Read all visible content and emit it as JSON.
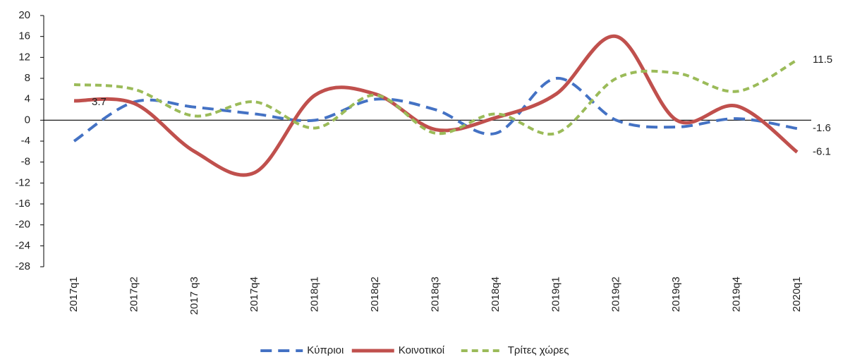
{
  "chart_data": {
    "type": "line",
    "categories": [
      "2017q1",
      "2017q2",
      "2017 q3",
      "2017q4",
      "2018q1",
      "2018q2",
      "2018q3",
      "2018q4",
      "2019q1",
      "2019q2",
      "2019q3",
      "2019q4",
      "2020q1"
    ],
    "series": [
      {
        "name": "Κύπριοι",
        "color": "#4472c4",
        "dash": "dashed",
        "values": [
          -4,
          3.5,
          2.5,
          1.2,
          0,
          4,
          2,
          -2.5,
          8,
          0,
          -1.3,
          0.3,
          -1.6
        ],
        "value_labels": [
          null,
          null,
          null,
          null,
          null,
          null,
          null,
          null,
          null,
          null,
          null,
          null,
          "-1.6"
        ]
      },
      {
        "name": "Κοινοτικοί",
        "color": "#c0504d",
        "dash": "solid",
        "values": [
          3.7,
          3.2,
          -6,
          -10,
          4.8,
          5,
          -1.8,
          0.5,
          5,
          16,
          0,
          2.7,
          -6.1
        ],
        "value_labels": [
          "3.7",
          null,
          null,
          null,
          null,
          null,
          null,
          null,
          null,
          null,
          null,
          null,
          "-6.1"
        ]
      },
      {
        "name": "Τρίτες χώρες",
        "color": "#9bbb59",
        "dash": "dashed",
        "values": [
          6.8,
          5.9,
          0.8,
          3.5,
          -1.5,
          4.8,
          -2.5,
          1.2,
          -2.5,
          8,
          9,
          5.5,
          11.5
        ],
        "value_labels": [
          null,
          null,
          null,
          null,
          null,
          null,
          null,
          null,
          null,
          null,
          null,
          null,
          "11.5"
        ]
      }
    ],
    "ylim": [
      -28,
      20
    ],
    "yticks": [
      20,
      16,
      12,
      8,
      4,
      0,
      -4,
      -8,
      -12,
      -16,
      -20,
      -24,
      -28
    ],
    "smooth": true,
    "legend": "bottom"
  }
}
